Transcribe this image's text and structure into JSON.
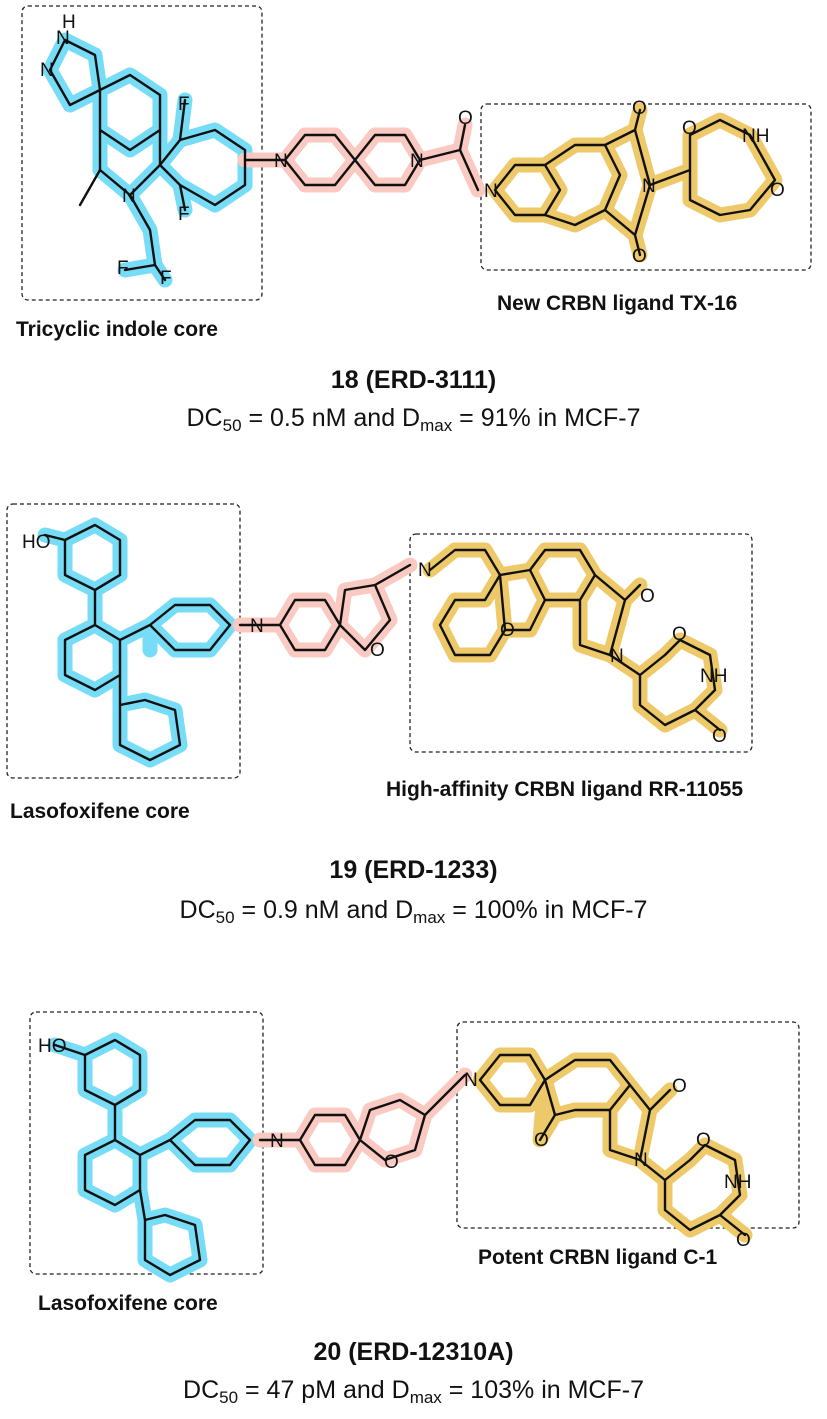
{
  "compounds": [
    {
      "number_name": "18 (ERD-3111)",
      "dc50_prefix": "DC",
      "dc50_sub": "50",
      "dc50_value": " = 0.5 nM and D",
      "dmax_sub": "max",
      "dmax_value": " = 91% in MCF-7",
      "left_label": "Tricyclic indole core",
      "right_label": "New CRBN ligand TX-16"
    },
    {
      "number_name": "19 (ERD-1233)",
      "dc50_prefix": "DC",
      "dc50_sub": "50",
      "dc50_value": " = 0.9 nM and D",
      "dmax_sub": "max",
      "dmax_value": " = 100% in MCF-7",
      "left_label": "Lasofoxifene core",
      "right_label": "High-affinity CRBN ligand RR-11055"
    },
    {
      "number_name": "20 (ERD-12310A)",
      "dc50_prefix": "DC",
      "dc50_sub": "50",
      "dc50_value": " = 47 pM and D",
      "dmax_sub": "max",
      "dmax_value": " = 103% in MCF-7",
      "left_label": "Lasofoxifene core",
      "right_label": "Potent CRBN ligand C-1"
    }
  ],
  "atoms": {
    "N": "N",
    "H": "H",
    "NH": "NH",
    "F": "F",
    "O": "O",
    "HO": "HO"
  },
  "colors": {
    "warhead": "#77dcf5",
    "linker": "#f9c9c2",
    "crbn_ligand": "#eec96a"
  }
}
